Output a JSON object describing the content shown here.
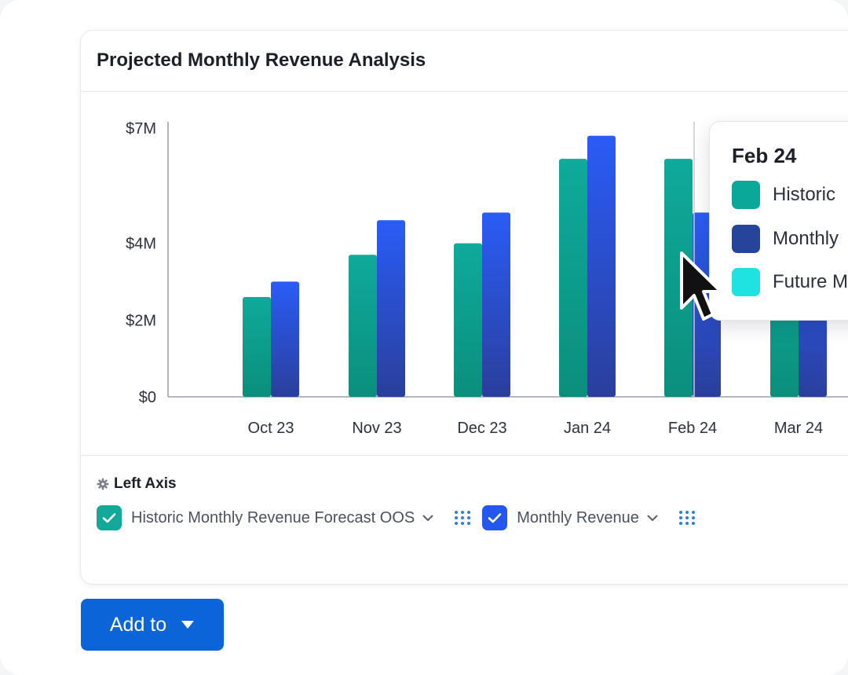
{
  "card": {
    "title": "Projected Monthly Revenue Analysis"
  },
  "chart_data": {
    "type": "bar",
    "categories": [
      "Oct 23",
      "Nov 23",
      "Dec 23",
      "Jan 24",
      "Feb 24",
      "Mar 24"
    ],
    "y_ticks": [
      {
        "label": "$0",
        "value": 0
      },
      {
        "label": "$2M",
        "value": 2
      },
      {
        "label": "$4M",
        "value": 4
      },
      {
        "label": "$7M",
        "value": 7
      }
    ],
    "ylim": [
      0,
      7
    ],
    "unit": "$M",
    "series": [
      {
        "name": "Historic Monthly Revenue Forecast OOS",
        "color": "#0aa898",
        "values": [
          2.6,
          3.7,
          4.0,
          6.2,
          6.2,
          4.2
        ]
      },
      {
        "name": "Monthly Revenue",
        "color": "#2456f0",
        "values": [
          3.0,
          4.6,
          4.8,
          6.8,
          4.8,
          4.2
        ]
      }
    ],
    "hover_category": "Feb 24",
    "grid": false
  },
  "settings": {
    "left_axis_label": "Left Axis",
    "series_controls": [
      {
        "label": "Historic Monthly Revenue Forecast OOS",
        "checked": true,
        "color": "#12a89a"
      },
      {
        "label": "Monthly Revenue",
        "checked": true,
        "color": "#2456f0"
      }
    ]
  },
  "tooltip": {
    "title": "Feb 24",
    "rows": [
      {
        "label": "Historic",
        "color": "#0aa898"
      },
      {
        "label": "Monthly",
        "color": "#24459a"
      },
      {
        "label": "Future M",
        "color": "#1ee3e0"
      }
    ]
  },
  "add_button": {
    "label": "Add to"
  },
  "icons": {
    "settings": "gear-icon",
    "check": "check-icon",
    "chevron": "chevron-down-icon",
    "grip": "drag-grip-icon",
    "caret": "caret-down-icon",
    "cursor": "mouse-pointer-icon"
  }
}
